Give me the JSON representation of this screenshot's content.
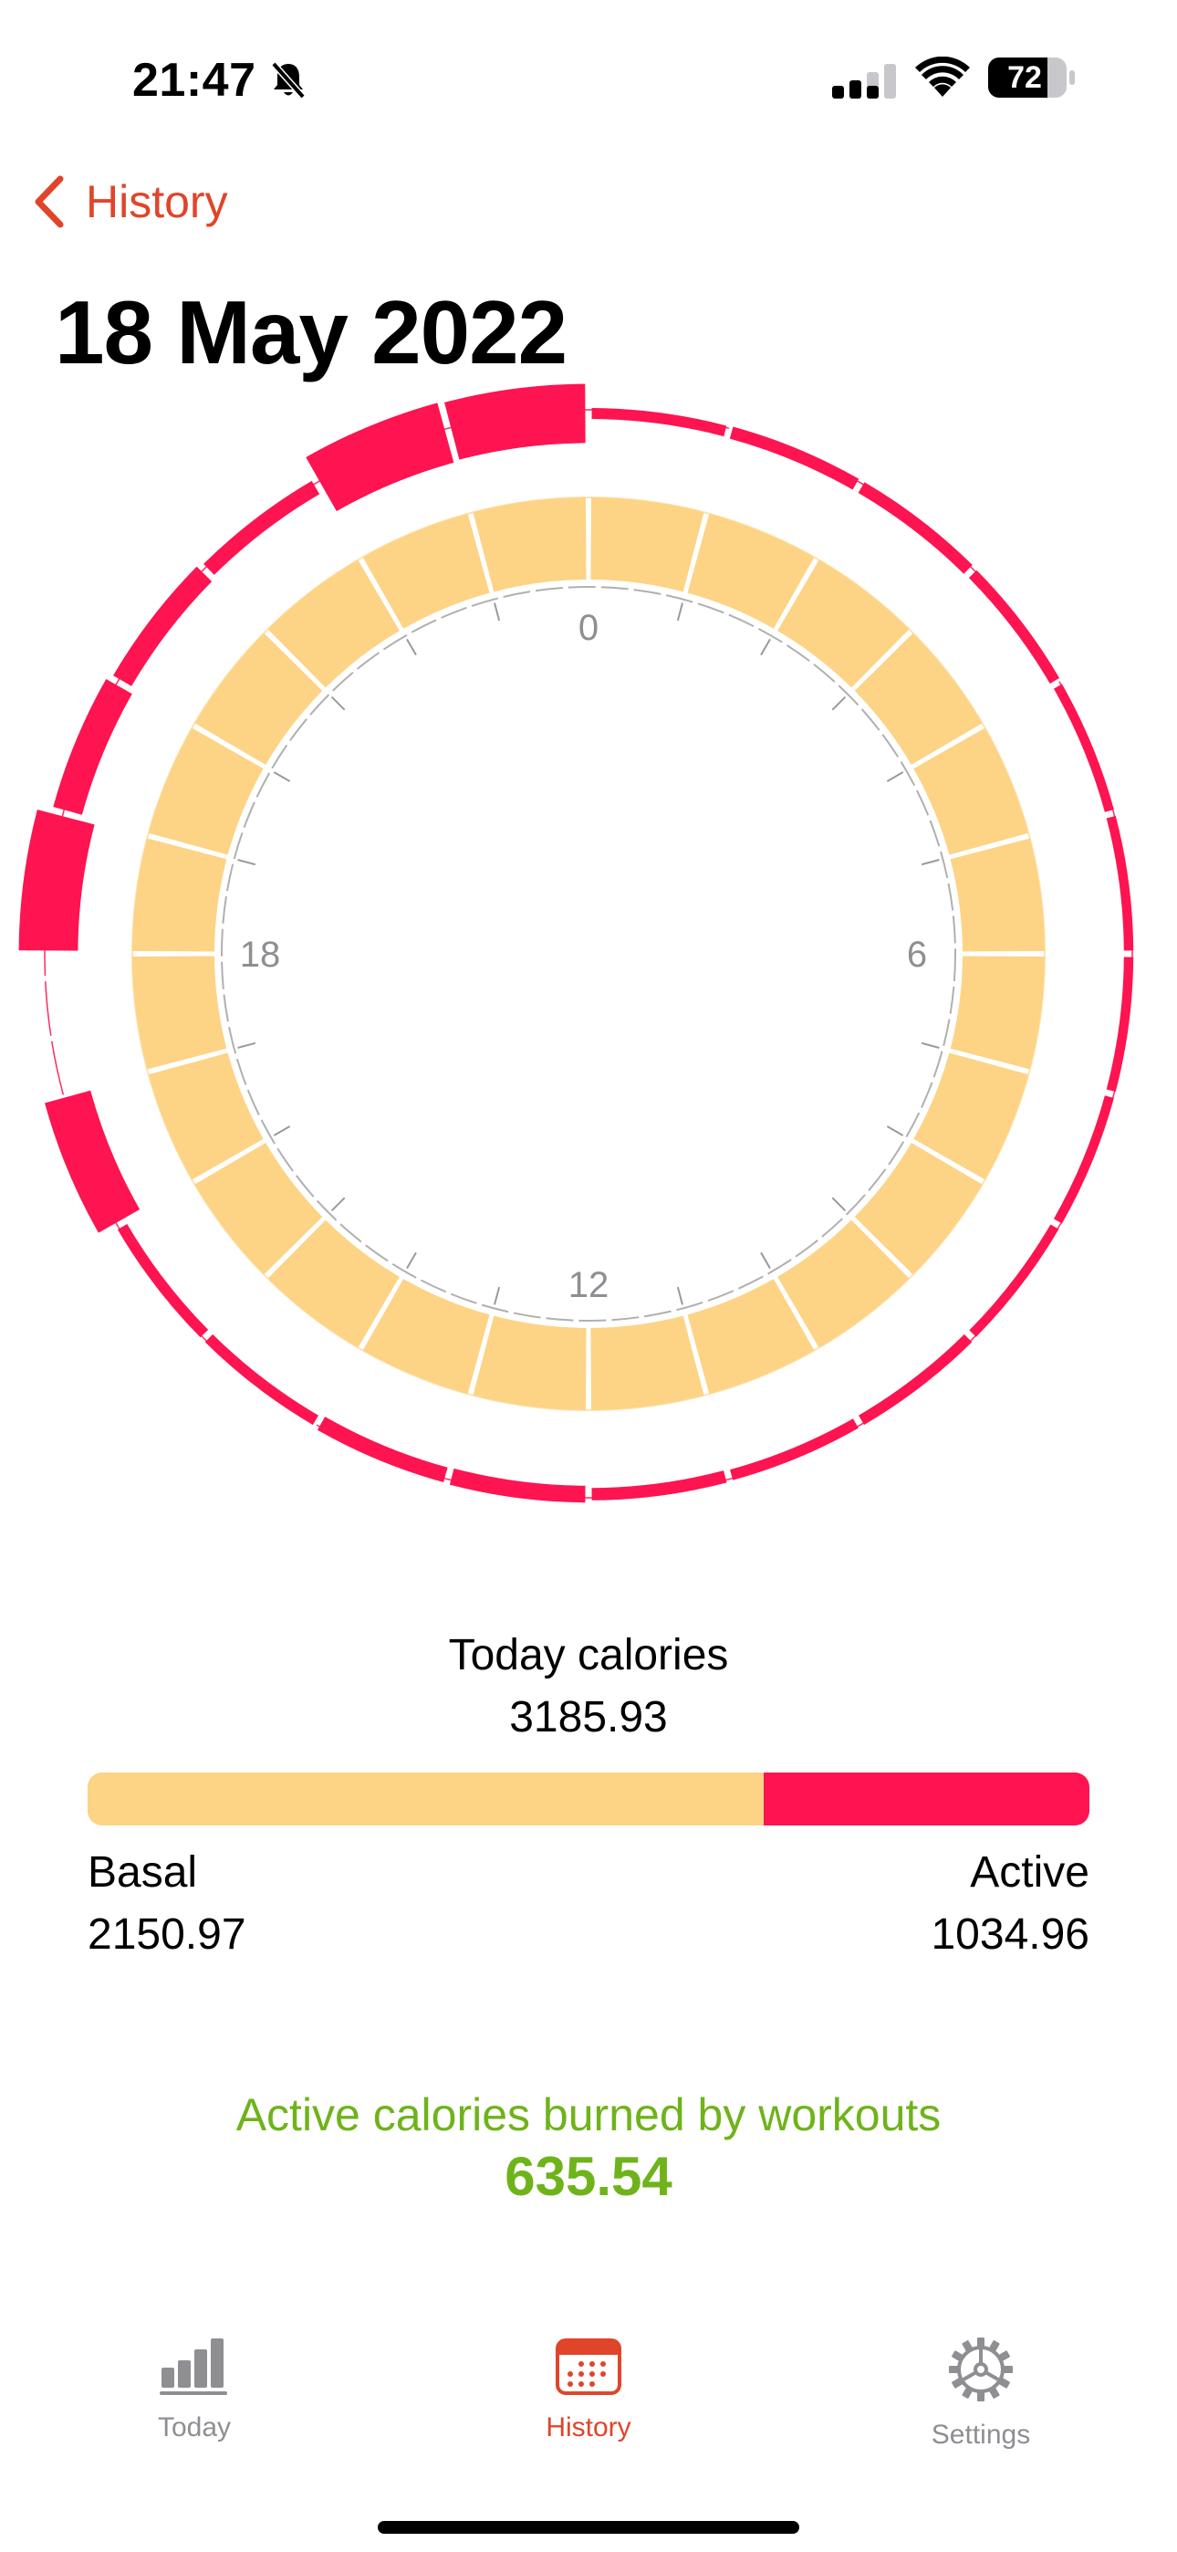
{
  "status_bar": {
    "time": "21:47",
    "battery": "72",
    "icons": [
      "bell-slash-icon",
      "cellular-signal-icon",
      "wifi-icon",
      "battery-icon"
    ]
  },
  "nav": {
    "back_label": "History",
    "back_icon": "chevron-left-icon"
  },
  "title": "18 May 2022",
  "colors": {
    "basal": "#fdd385",
    "active": "#fd1450",
    "accent": "#e0452a",
    "workouts": "#6fb31b",
    "inactive_tab": "#8e8e93"
  },
  "chart_data": {
    "type": "radial-bar",
    "hour_labels": [
      "0",
      "6",
      "12",
      "18"
    ],
    "hours": [
      0,
      1,
      2,
      3,
      4,
      5,
      6,
      7,
      8,
      9,
      10,
      11,
      12,
      13,
      14,
      15,
      16,
      17,
      18,
      19,
      20,
      21,
      22,
      23
    ],
    "series": [
      {
        "name": "Basal",
        "values": [
          90,
          90,
          90,
          90,
          90,
          90,
          90,
          90,
          90,
          90,
          90,
          90,
          90,
          90,
          90,
          90,
          90,
          90,
          90,
          90,
          90,
          90,
          90,
          90
        ]
      },
      {
        "name": "Active",
        "values": [
          5,
          6,
          6,
          5,
          4,
          4,
          4,
          4,
          4,
          5,
          5,
          6,
          9,
          8,
          5,
          5,
          30,
          0,
          38,
          18,
          12,
          8,
          40,
          38
        ]
      }
    ]
  },
  "totals": {
    "today_label": "Today calories",
    "today_value": "3185.93",
    "basal_label": "Basal",
    "basal_value": "2150.97",
    "active_label": "Active",
    "active_value": "1034.96",
    "basal_fraction": 0.6752
  },
  "workouts": {
    "label": "Active calories burned by workouts",
    "value": "635.54"
  },
  "tab_bar": {
    "tabs": [
      {
        "label": "Today",
        "icon": "bar-chart-icon",
        "selected": false
      },
      {
        "label": "History",
        "icon": "calendar-icon",
        "selected": true
      },
      {
        "label": "Settings",
        "icon": "gear-icon",
        "selected": false
      }
    ]
  }
}
